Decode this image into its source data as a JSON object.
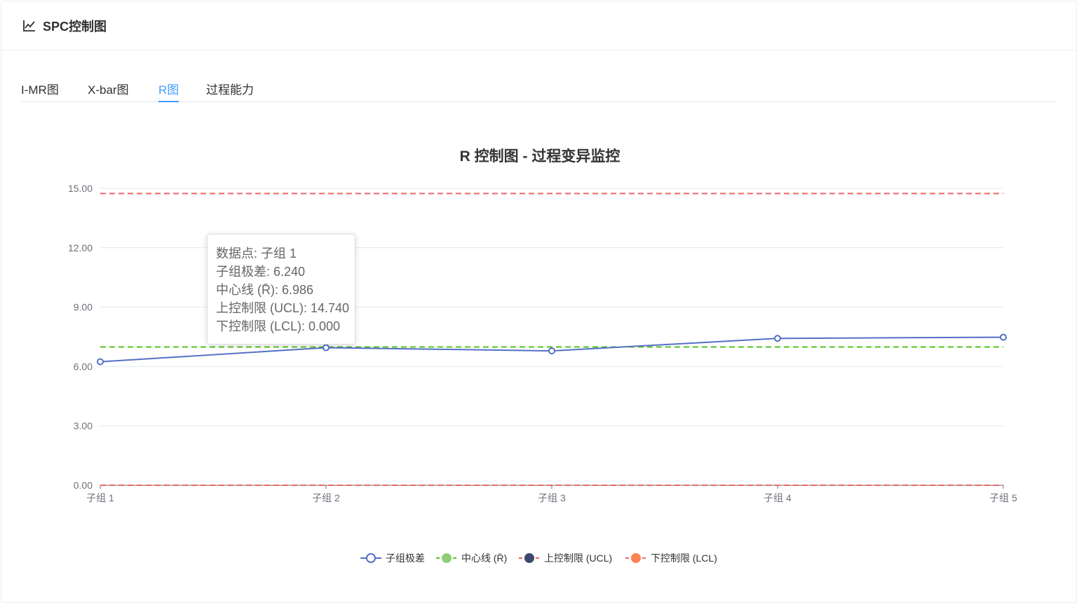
{
  "header": {
    "title": "SPC控制图",
    "icon": "line-chart-icon"
  },
  "tabs": [
    {
      "label": "I-MR图",
      "active": false
    },
    {
      "label": "X-bar图",
      "active": false
    },
    {
      "label": "R图",
      "active": true
    },
    {
      "label": "过程能力",
      "active": false
    }
  ],
  "chart_data": {
    "type": "line",
    "title": "R 控制图 - 过程变异监控",
    "categories": [
      "子组 1",
      "子组 2",
      "子组 3",
      "子组 4",
      "子组 5"
    ],
    "ylim": [
      0,
      15
    ],
    "yticks": [
      "0.00",
      "3.00",
      "6.00",
      "9.00",
      "12.00",
      "15.00"
    ],
    "grid": true,
    "legend_position": "bottom",
    "series": [
      {
        "name": "子组极差",
        "values": [
          6.24,
          6.95,
          6.79,
          7.42,
          7.48
        ],
        "color": "#5470c6",
        "style": "solid",
        "markers": true
      },
      {
        "name": "中心线 (R̄)",
        "values": [
          6.986,
          6.986,
          6.986,
          6.986,
          6.986
        ],
        "color": "#52c41a",
        "legend_color": "#91cc75",
        "style": "dashed"
      },
      {
        "name": "上控制限 (UCL)",
        "values": [
          14.74,
          14.74,
          14.74,
          14.74,
          14.74
        ],
        "color": "#ee6666",
        "legend_color": "#3b4a6b",
        "style": "dashed"
      },
      {
        "name": "下控制限 (LCL)",
        "values": [
          0,
          0,
          0,
          0,
          0
        ],
        "color": "#ee6666",
        "legend_color": "#fc8452",
        "style": "dashed"
      }
    ]
  },
  "tooltip": {
    "lines": [
      "数据点: 子组 1",
      "子组极差: 6.240",
      "中心线 (R̄): 6.986",
      "上控制限 (UCL): 14.740",
      "下控制限 (LCL): 0.000"
    ]
  }
}
